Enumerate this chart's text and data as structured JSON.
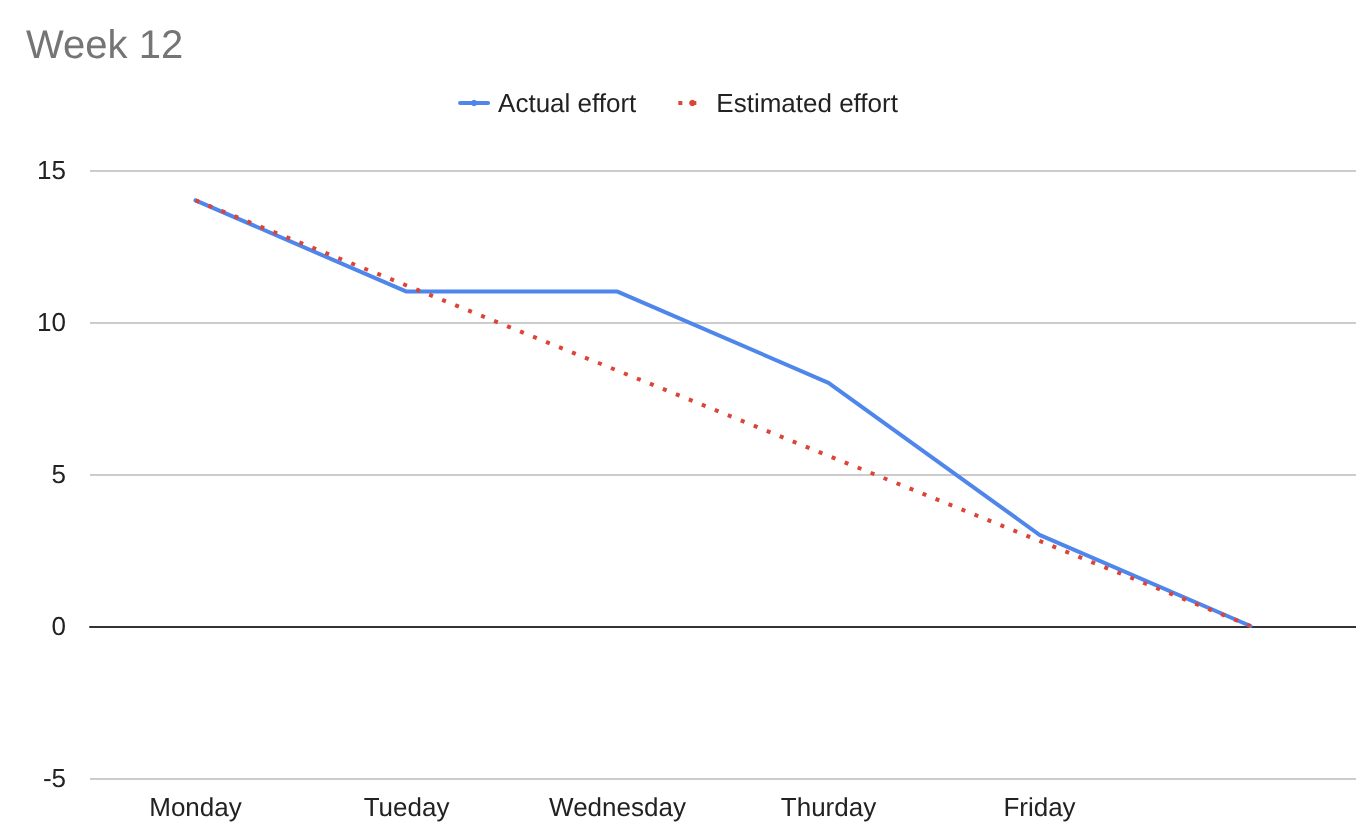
{
  "chart_data": {
    "type": "line",
    "title": "Week 12",
    "categories": [
      "Monday",
      "Tueday",
      "Wednesday",
      "Thurday",
      "Friday",
      null
    ],
    "series": [
      {
        "name": "Actual effort",
        "color": "#4f86ec",
        "values": [
          14,
          11,
          11,
          8,
          3,
          0
        ],
        "line_style": "solid"
      },
      {
        "name": "Estimated effort",
        "color": "#db4437",
        "values": [
          14,
          11.2,
          8.4,
          5.6,
          2.8,
          0
        ],
        "line_style": "dotted"
      }
    ],
    "ylim": [
      -5,
      15
    ],
    "yticks": [
      -5,
      0,
      5,
      10,
      15
    ],
    "grid": "y",
    "legend": "top",
    "marker": "none"
  }
}
